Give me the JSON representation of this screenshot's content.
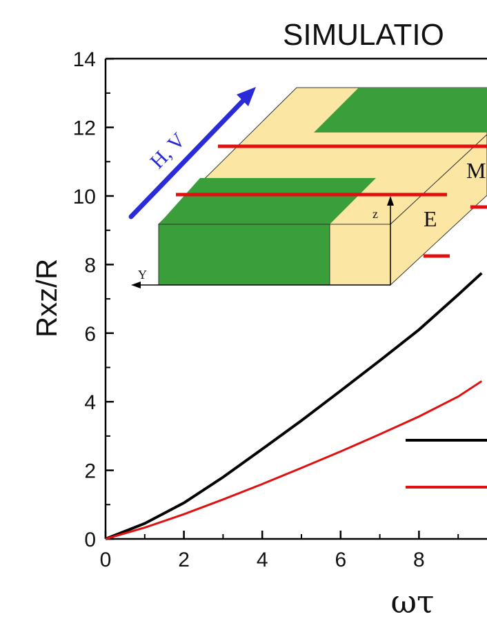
{
  "chart_data": {
    "type": "line",
    "title": "SIMULATIO",
    "xlabel": "ωτ",
    "ylabel": "Rxz/R",
    "xlim": [
      0,
      10
    ],
    "ylim": [
      0,
      14
    ],
    "x_ticks": [
      "0",
      "2",
      "4",
      "6",
      "8"
    ],
    "y_ticks": [
      "0",
      "2",
      "4",
      "6",
      "8",
      "10",
      "12",
      "14"
    ],
    "grid": false,
    "legend": "bottom-right",
    "series": [
      {
        "color": "#000000",
        "x": [
          0,
          1,
          2,
          3,
          4,
          5,
          6,
          7,
          8,
          9,
          9.6
        ],
        "y": [
          0,
          0.45,
          1.05,
          1.8,
          2.62,
          3.45,
          4.32,
          5.2,
          6.1,
          7.12,
          7.75
        ]
      },
      {
        "color": "#e01010",
        "x": [
          0,
          1,
          2,
          3,
          4,
          5,
          6,
          7,
          8,
          9,
          9.6
        ],
        "y": [
          0,
          0.33,
          0.72,
          1.15,
          1.6,
          2.07,
          2.55,
          3.05,
          3.57,
          4.15,
          4.6
        ]
      }
    ]
  },
  "inset": {
    "arrow_label": "H,  V",
    "label_m": "M",
    "label_e": "E",
    "label_z": "z",
    "label_y": "Y",
    "colors": {
      "green": "#3a9e3a",
      "yellow": "#fbe6a4",
      "blue": "#2a2ad8",
      "red": "#e01010"
    }
  }
}
